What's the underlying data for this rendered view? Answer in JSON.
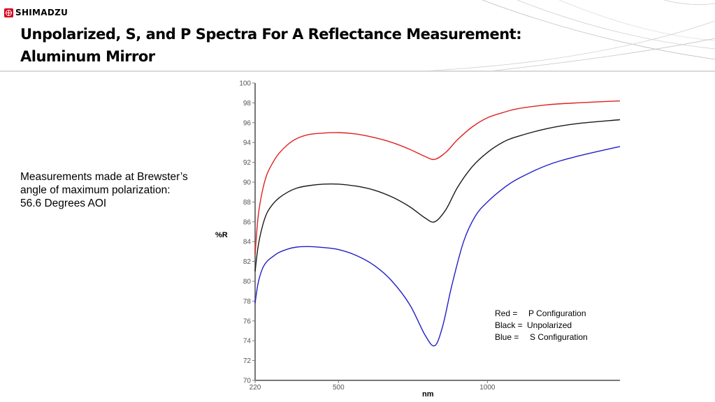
{
  "header": {
    "brand": "SHIMADZU",
    "title_line1": "Unpolarized, S, and P Spectra For A Reflectance Measurement:",
    "title_line2": "Aluminum Mirror"
  },
  "note": {
    "line1": "Measurements made at Brewster’s",
    "line2": "angle of maximum polarization:",
    "line3": "56.6 Degrees AOI"
  },
  "legend": {
    "red": {
      "key": "Red =",
      "value": "P Configuration"
    },
    "black": {
      "key": "Black =",
      "value": "Unpolarized"
    },
    "blue": {
      "key": "Blue =",
      "value": "S Configuration"
    }
  },
  "chart_data": {
    "type": "line",
    "title": "",
    "xlabel": "nm",
    "ylabel": "%R",
    "xlim": [
      220,
      1445
    ],
    "ylim": [
      70,
      100
    ],
    "grid": false,
    "x_ticks": [
      220,
      500,
      1000
    ],
    "x_tick_labels": [
      "220",
      "500",
      "1000"
    ],
    "y_ticks": [
      70,
      72,
      74,
      76,
      78,
      80,
      82,
      84,
      86,
      88,
      90,
      92,
      94,
      96,
      98,
      100
    ],
    "y_tick_labels": [
      "70",
      "72",
      "74",
      "76",
      "78",
      "80",
      "82",
      "84",
      "86",
      "88",
      "90",
      "92",
      "94",
      "96",
      "98",
      "100"
    ],
    "legend_position": "bottom-right",
    "series": [
      {
        "name": "P Configuration",
        "color": "#e02020",
        "x": [
          220,
          230,
          245,
          260,
          280,
          300,
          330,
          360,
          400,
          450,
          500,
          560,
          620,
          680,
          740,
          790,
          823,
          860,
          900,
          950,
          1000,
          1050,
          1100,
          1200,
          1300,
          1445
        ],
        "y": [
          82.7,
          86.5,
          89.2,
          90.8,
          92.0,
          92.9,
          93.8,
          94.4,
          94.8,
          94.95,
          95.0,
          94.85,
          94.5,
          94.0,
          93.3,
          92.6,
          92.3,
          93.0,
          94.3,
          95.6,
          96.5,
          97.0,
          97.4,
          97.8,
          98.0,
          98.2
        ]
      },
      {
        "name": "Unpolarized",
        "color": "#1a1a1a",
        "x": [
          220,
          230,
          245,
          260,
          280,
          300,
          330,
          360,
          400,
          450,
          500,
          560,
          620,
          680,
          740,
          790,
          823,
          860,
          900,
          950,
          1000,
          1050,
          1100,
          1200,
          1300,
          1445
        ],
        "y": [
          81.0,
          83.5,
          85.6,
          86.9,
          87.8,
          88.4,
          89.0,
          89.4,
          89.65,
          89.8,
          89.8,
          89.6,
          89.2,
          88.5,
          87.5,
          86.4,
          86.0,
          87.2,
          89.5,
          91.6,
          93.0,
          94.0,
          94.6,
          95.4,
          95.9,
          96.3
        ]
      },
      {
        "name": "S Configuration",
        "color": "#2020c8",
        "x": [
          220,
          230,
          245,
          260,
          280,
          300,
          330,
          360,
          400,
          450,
          500,
          560,
          620,
          680,
          740,
          790,
          823,
          850,
          880,
          920,
          960,
          1000,
          1050,
          1100,
          1200,
          1300,
          1445
        ],
        "y": [
          77.8,
          79.8,
          81.3,
          82.0,
          82.5,
          82.9,
          83.25,
          83.45,
          83.5,
          83.4,
          83.2,
          82.6,
          81.6,
          80.0,
          77.6,
          74.6,
          73.5,
          75.5,
          79.5,
          84.0,
          86.6,
          88.0,
          89.3,
          90.3,
          91.7,
          92.6,
          93.6
        ]
      }
    ]
  }
}
